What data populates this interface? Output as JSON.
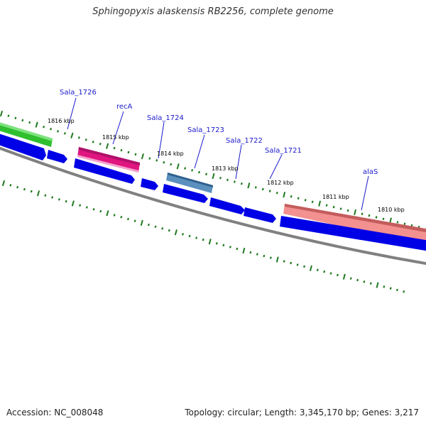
{
  "title": "Sphingopyxis alaskensis RB2256, complete genome",
  "footer": {
    "accession": "Accession: NC_008048",
    "info": "Topology: circular; Length: 3,345,170 bp; Genes: 3,217"
  },
  "colors": {
    "forward_gene": "#0000ee",
    "backbone": "#808080",
    "tick": "#1f7a1f",
    "label": "#1a1acc",
    "kbp_label": "#000000",
    "recA": "#ee1493",
    "Sala_1726": "#33cc33",
    "Sala_1723": "#4682b4",
    "alaS": "#f08080"
  },
  "gene_labels": [
    "Sala_1726",
    "recA",
    "Sala_1724",
    "Sala_1723",
    "Sala_1722",
    "Sala_1721",
    "alaS"
  ],
  "kbp_labels": [
    "1816 kbp",
    "1815 kbp",
    "1814 kbp",
    "1813 kbp",
    "1812 kbp",
    "1811 kbp",
    "1810 kbp"
  ]
}
